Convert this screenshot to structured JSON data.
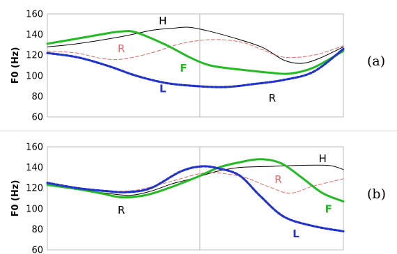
{
  "chart_data": [
    {
      "type": "line",
      "panel_label": "(a)",
      "ylabel": "F0 (Hz)",
      "ylim": [
        60,
        160
      ],
      "yticks": [
        "60",
        "80",
        "100",
        "120",
        "140",
        "160"
      ],
      "x_range": [
        0,
        100
      ],
      "divider_at": 51.5,
      "grid": false,
      "series": [
        {
          "name": "H",
          "color": "#000000",
          "style": "solid-thin",
          "x": [
            0,
            10,
            25,
            35,
            42,
            48,
            55,
            65,
            73,
            80,
            86,
            92,
            100
          ],
          "y": [
            128,
            131,
            138,
            144,
            146,
            147,
            143,
            135,
            127,
            115,
            112,
            117,
            128
          ],
          "label_pos": [
            39,
            150
          ]
        },
        {
          "name": "R",
          "color": "#e06666",
          "style": "dashed-thin",
          "x": [
            0,
            10,
            18,
            25,
            35,
            45,
            55,
            65,
            72,
            80,
            90,
            100
          ],
          "y": [
            124,
            122,
            117,
            116,
            122,
            131,
            135,
            133,
            126,
            118,
            120,
            129
          ],
          "label_pos": [
            25,
            123
          ]
        },
        {
          "name": "F",
          "color": "#22bb22",
          "style": "solid-thick",
          "x": [
            0,
            10,
            20,
            25,
            30,
            40,
            48,
            55,
            65,
            75,
            82,
            90,
            100
          ],
          "y": [
            131,
            136,
            141,
            143,
            142,
            130,
            118,
            110,
            106,
            103,
            102,
            108,
            124
          ],
          "label_pos": [
            46,
            104
          ]
        },
        {
          "name": "L",
          "color": "#2233cc",
          "style": "dashed-thick",
          "x": [
            0,
            10,
            20,
            30,
            40,
            50,
            60,
            70,
            80,
            90,
            100
          ],
          "y": [
            122,
            118,
            110,
            100,
            93,
            90,
            89,
            92,
            96,
            104,
            126
          ],
          "label_pos": [
            39,
            84
          ]
        }
      ],
      "annotations": [
        {
          "text": "R",
          "pos": [
            76,
            75
          ]
        }
      ]
    },
    {
      "type": "line",
      "panel_label": "(b)",
      "ylabel": "F0 (Hz)",
      "ylim": [
        60,
        160
      ],
      "yticks": [
        "60",
        "80",
        "100",
        "120",
        "140",
        "160"
      ],
      "x_range": [
        0,
        100
      ],
      "divider_at": 51.5,
      "grid": false,
      "series": [
        {
          "name": "H",
          "color": "#000000",
          "style": "solid-thin",
          "x": [
            0,
            10,
            20,
            28,
            35,
            42,
            50,
            57,
            65,
            75,
            85,
            95,
            100
          ],
          "y": [
            123,
            119,
            115,
            113,
            117,
            124,
            130,
            136,
            140,
            141,
            142,
            142,
            138
          ],
          "label_pos": [
            93,
            145
          ]
        },
        {
          "name": "R",
          "color": "#e06666",
          "style": "dashed-thin",
          "x": [
            0,
            10,
            20,
            30,
            40,
            50,
            55,
            60,
            67,
            75,
            82,
            90,
            100
          ],
          "y": [
            124,
            120,
            117,
            118,
            125,
            133,
            135,
            134,
            130,
            121,
            115,
            122,
            129
          ],
          "label_pos": [
            78,
            125
          ]
        },
        {
          "name": "F",
          "color": "#22bb22",
          "style": "solid-thick",
          "x": [
            0,
            10,
            18,
            25,
            33,
            40,
            50,
            58,
            65,
            72,
            79,
            86,
            93,
            100
          ],
          "y": [
            123,
            119,
            115,
            111,
            113,
            119,
            130,
            140,
            145,
            148,
            144,
            130,
            115,
            107
          ],
          "label_pos": [
            95,
            96
          ]
        },
        {
          "name": "L",
          "color": "#2233cc",
          "style": "dashed-thick",
          "x": [
            0,
            10,
            20,
            27,
            35,
            45,
            52,
            58,
            65,
            72,
            80,
            90,
            100
          ],
          "y": [
            125,
            120,
            117,
            116,
            120,
            136,
            141,
            139,
            132,
            112,
            92,
            83,
            78
          ],
          "label_pos": [
            84,
            72
          ]
        }
      ],
      "annotations": [
        {
          "text": "R",
          "pos": [
            25,
            95
          ]
        }
      ]
    }
  ]
}
